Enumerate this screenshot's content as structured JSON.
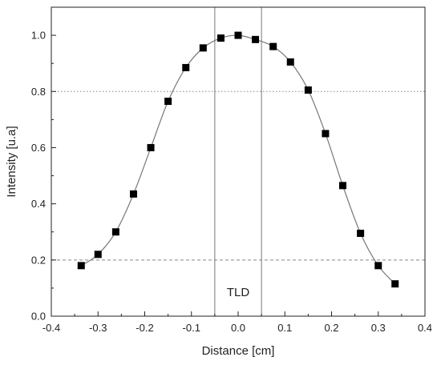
{
  "chart_data": {
    "type": "scatter",
    "title": "",
    "xlabel": "Distance [cm]",
    "ylabel": "Intensity [u.a]",
    "xlim": [
      -0.4,
      0.4
    ],
    "ylim": [
      0.0,
      1.1
    ],
    "xticks": [
      -0.4,
      -0.3,
      -0.2,
      -0.1,
      0.0,
      0.1,
      0.2,
      0.3,
      0.4
    ],
    "xtick_labels": [
      "-0.4",
      "-0.3",
      "-0.2",
      "-0.1",
      "0.0",
      "0.1",
      "0.2",
      "0.3",
      "0.4"
    ],
    "yticks": [
      0.0,
      0.2,
      0.4,
      0.6,
      0.8,
      1.0
    ],
    "ytick_labels": [
      "0.0",
      "0.2",
      "0.4",
      "0.6",
      "0.8",
      "1.0"
    ],
    "grid": false,
    "series": [
      {
        "marker": "square",
        "connected": true,
        "color": "#000000",
        "line_color": "#777777",
        "x": [
          -0.336,
          -0.3,
          -0.262,
          -0.224,
          -0.187,
          -0.15,
          -0.112,
          -0.075,
          -0.037,
          0.0,
          0.037,
          0.075,
          0.112,
          0.15,
          0.187,
          0.224,
          0.262,
          0.3,
          0.336
        ],
        "y": [
          0.18,
          0.22,
          0.3,
          0.435,
          0.6,
          0.765,
          0.885,
          0.955,
          0.99,
          1.0,
          0.985,
          0.96,
          0.905,
          0.805,
          0.65,
          0.465,
          0.295,
          0.18,
          0.115
        ]
      }
    ],
    "reference_lines": [
      {
        "orientation": "horizontal",
        "value": 0.8,
        "style": "dotted"
      },
      {
        "orientation": "horizontal",
        "value": 0.2,
        "style": "dashed"
      },
      {
        "orientation": "vertical",
        "value": -0.05,
        "style": "solid"
      },
      {
        "orientation": "vertical",
        "value": 0.05,
        "style": "solid"
      }
    ],
    "annotations": [
      {
        "text": "TLD",
        "x": 0.0,
        "y": 0.085
      }
    ]
  }
}
